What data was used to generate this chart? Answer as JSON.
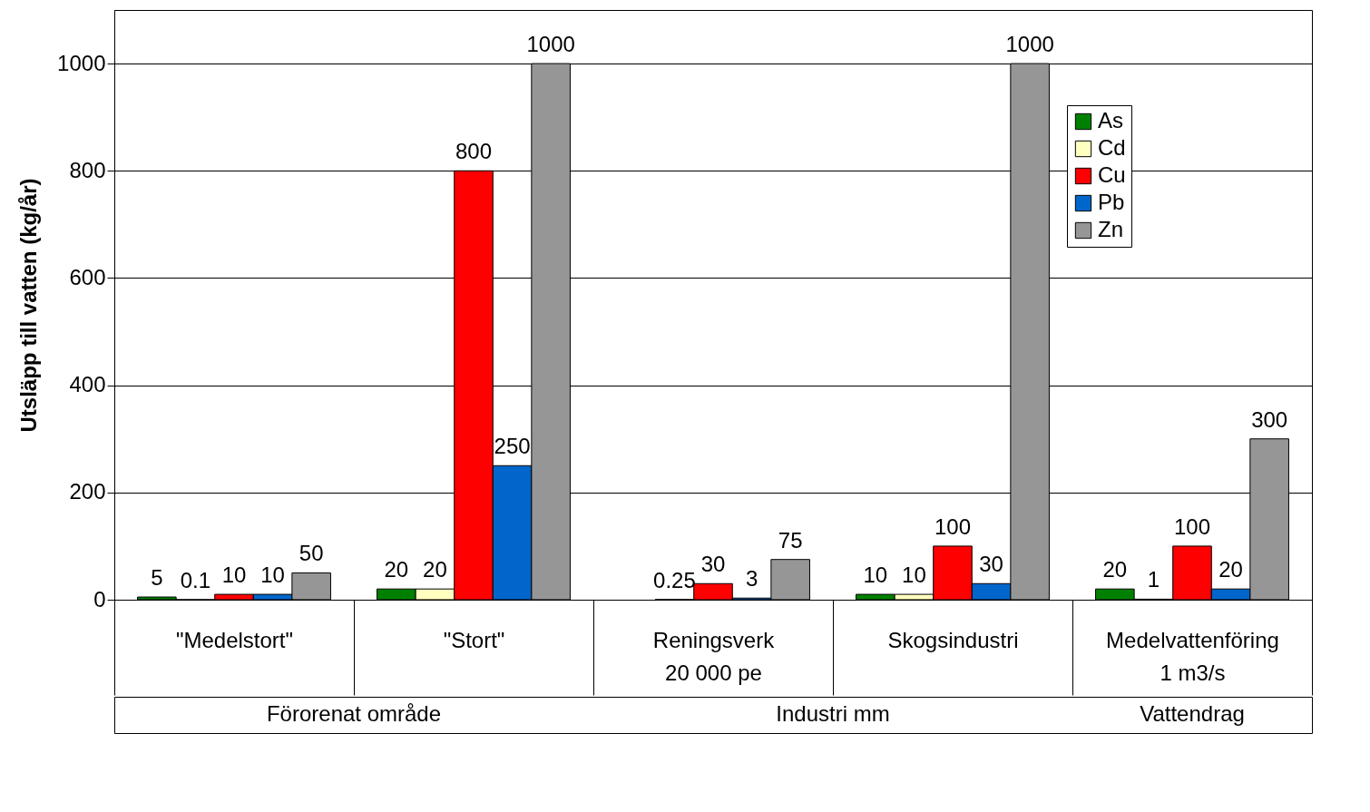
{
  "chart_data": {
    "type": "bar",
    "ylabel": "Utsläpp till vatten (kg/år)",
    "categories": [
      "\"Medelstort\"",
      "\"Stort\"",
      "Reningsverk\n20 000 pe",
      "Skogsindustri",
      "Medelvattenföring\n1 m3/s"
    ],
    "series": [
      {
        "name": "As",
        "color": "#008000",
        "values": [
          5,
          20,
          null,
          10,
          20
        ]
      },
      {
        "name": "Cd",
        "color": "#ffffc0",
        "values": [
          0.1,
          20,
          0.25,
          10,
          1
        ]
      },
      {
        "name": "Cu",
        "color": "#ff0000",
        "values": [
          10,
          800,
          30,
          100,
          100
        ]
      },
      {
        "name": "Pb",
        "color": "#0066cc",
        "values": [
          10,
          250,
          3,
          30,
          20
        ]
      },
      {
        "name": "Zn",
        "color": "#969696",
        "values": [
          50,
          1000,
          75,
          1000,
          300
        ]
      }
    ],
    "ylim": [
      0,
      1100
    ],
    "yticks": [
      0,
      200,
      400,
      600,
      800,
      1000
    ],
    "grid": "y",
    "legend": "top right",
    "data_labels": true,
    "annotations": [
      "Förorenat område",
      "Industri mm",
      "Vattendrag"
    ]
  }
}
